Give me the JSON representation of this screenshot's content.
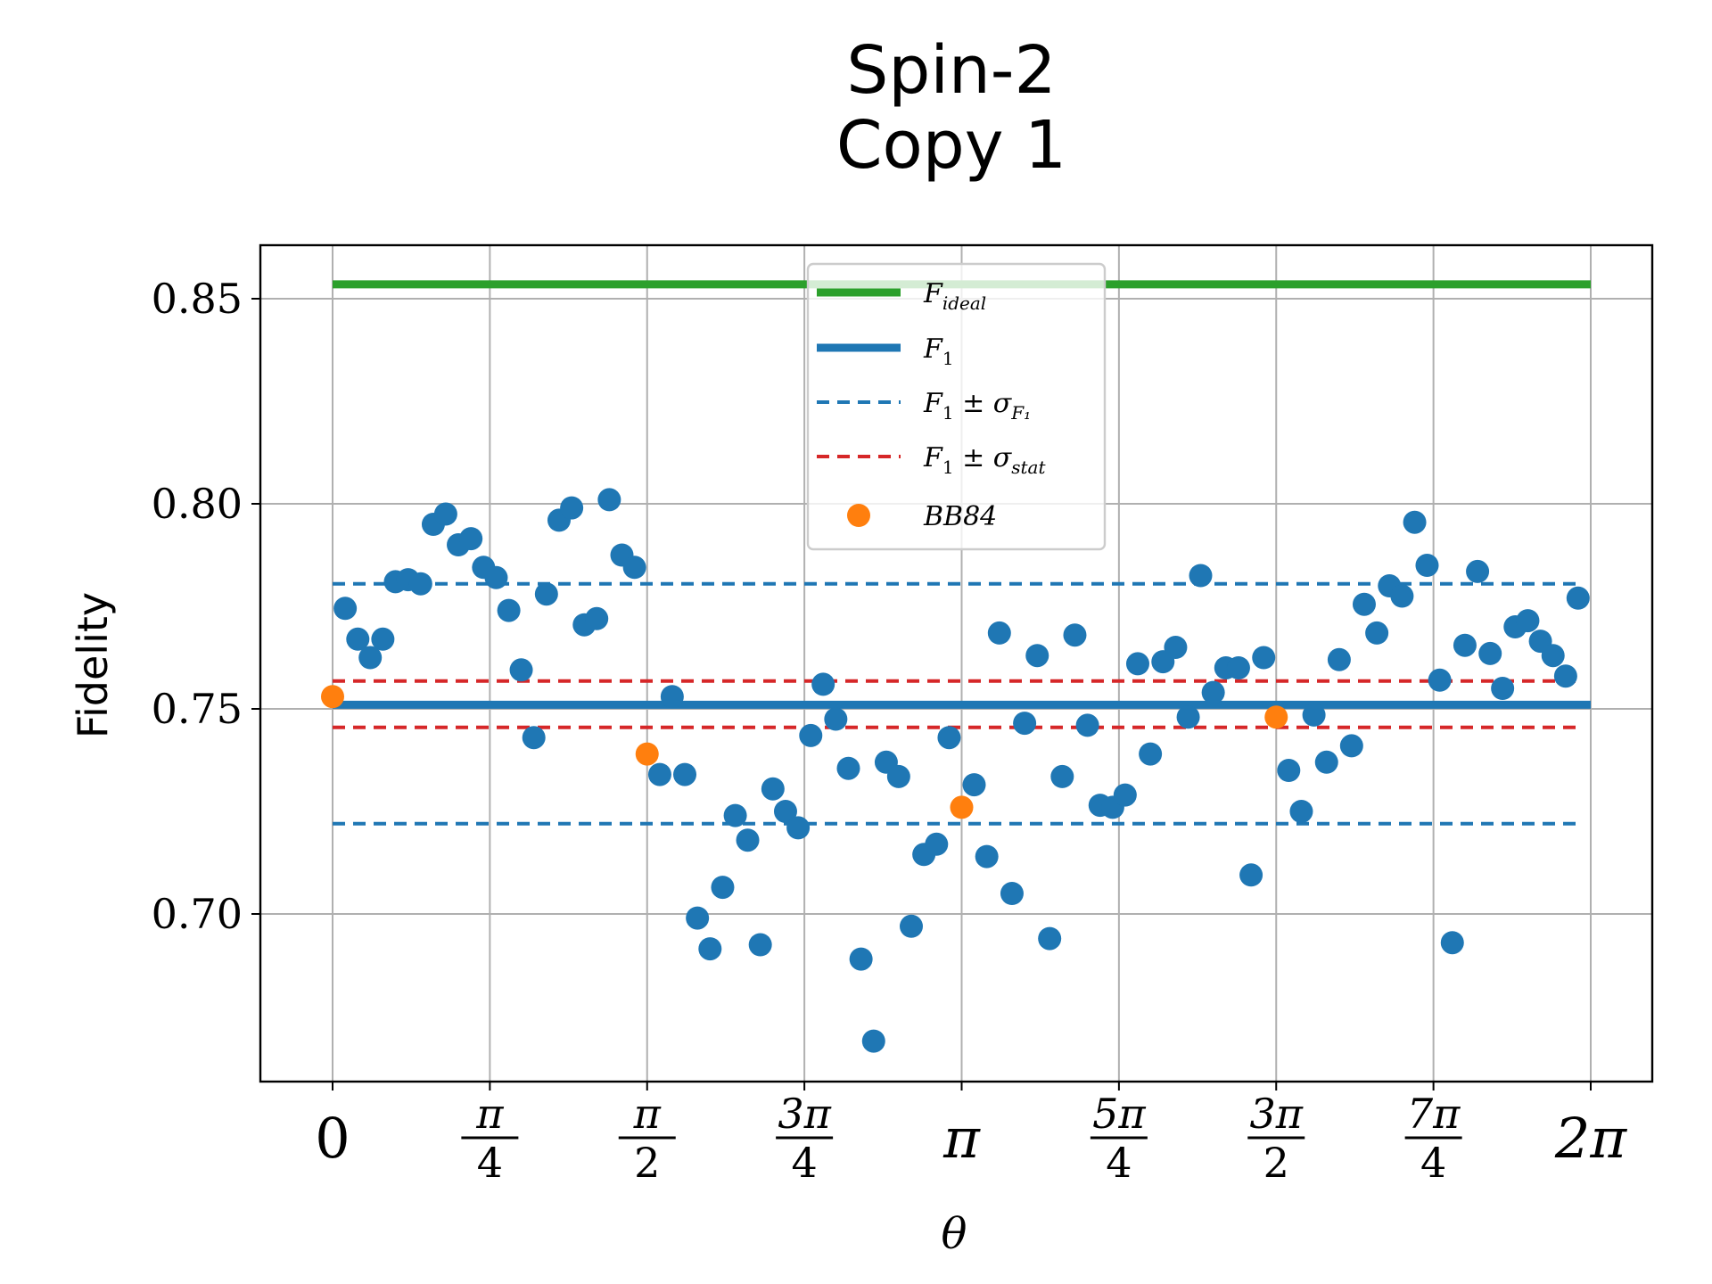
{
  "chart_data": {
    "type": "scatter",
    "title_lines": [
      "Spin-2",
      "Copy 1"
    ],
    "xlabel": "θ",
    "ylabel": "Fidelity",
    "xlim": [
      -0.45,
      8.4
    ],
    "ylim": [
      0.66,
      0.8632
    ],
    "grid": true,
    "legend_position": "upper center",
    "colors": {
      "ideal": "#2ca02c",
      "f1": "#1f77b4",
      "sigma_f1": "#1f77b4",
      "sigma_stat": "#d62728",
      "bb84": "#ff7f0e"
    },
    "y_ticks": [
      {
        "value": 0.7,
        "label": "0.70"
      },
      {
        "value": 0.75,
        "label": "0.75"
      },
      {
        "value": 0.8,
        "label": "0.80"
      },
      {
        "value": 0.85,
        "label": "0.85"
      }
    ],
    "x_ticks": [
      {
        "value": 0,
        "num": "0",
        "den": ""
      },
      {
        "value": 0.7854,
        "num": "π",
        "den": "4"
      },
      {
        "value": 1.5708,
        "num": "π",
        "den": "2"
      },
      {
        "value": 2.3562,
        "num": "3π",
        "den": "4"
      },
      {
        "value": 3.1416,
        "num": "π",
        "den": ""
      },
      {
        "value": 3.927,
        "num": "5π",
        "den": "4"
      },
      {
        "value": 4.7124,
        "num": "3π",
        "den": "2"
      },
      {
        "value": 5.4978,
        "num": "7π",
        "den": "4"
      },
      {
        "value": 6.2832,
        "num": "2π",
        "den": ""
      }
    ],
    "lines": {
      "ideal": {
        "y": 0.8535,
        "x": [
          0,
          6.2832
        ]
      },
      "f1": {
        "y": 0.751,
        "x": [
          0,
          6.2832
        ]
      },
      "f1_plus_sigma_f1": {
        "y": 0.7805,
        "x": [
          0,
          6.22
        ]
      },
      "f1_minus_sigma_f1": {
        "y": 0.722,
        "x": [
          0,
          6.22
        ]
      },
      "f1_plus_sigma_stat": {
        "y": 0.7568,
        "x": [
          0,
          6.22
        ]
      },
      "f1_minus_sigma_stat": {
        "y": 0.7455,
        "x": [
          0,
          6.22
        ]
      }
    },
    "legend": [
      {
        "key": "ideal",
        "style": "solid-thick",
        "color": "#2ca02c",
        "base": "F",
        "sub": "ideal"
      },
      {
        "key": "f1",
        "style": "solid-thick",
        "color": "#1f77b4",
        "base": "F",
        "sub": "1"
      },
      {
        "key": "sigma_f1",
        "style": "dashed",
        "color": "#1f77b4",
        "base": "F",
        "sub": "1",
        "pm": " ± σ",
        "sub2": "F₁"
      },
      {
        "key": "sigma_stat",
        "style": "dashed",
        "color": "#d62728",
        "base": "F",
        "sub": "1",
        "pm": " ± σ",
        "sub2": "stat"
      },
      {
        "key": "bb84",
        "style": "marker",
        "color": "#ff7f0e",
        "base": "BB84",
        "sub": ""
      }
    ],
    "series": [
      {
        "name": "F_1 measurements",
        "color": "#1f77b4",
        "x": [
          0.063,
          0.126,
          0.188,
          0.251,
          0.314,
          0.377,
          0.44,
          0.503,
          0.565,
          0.628,
          0.691,
          0.754,
          0.817,
          0.88,
          0.942,
          1.005,
          1.068,
          1.131,
          1.194,
          1.257,
          1.319,
          1.382,
          1.445,
          1.508,
          1.634,
          1.696,
          1.759,
          1.822,
          1.885,
          1.948,
          2.011,
          2.073,
          2.136,
          2.199,
          2.262,
          2.325,
          2.388,
          2.45,
          2.513,
          2.576,
          2.639,
          2.702,
          2.765,
          2.827,
          2.89,
          2.953,
          3.016,
          3.079,
          3.204,
          3.267,
          3.33,
          3.393,
          3.456,
          3.519,
          3.581,
          3.644,
          3.707,
          3.77,
          3.833,
          3.896,
          3.958,
          4.021,
          4.084,
          4.147,
          4.21,
          4.273,
          4.335,
          4.398,
          4.461,
          4.524,
          4.587,
          4.65,
          4.775,
          4.838,
          4.901,
          4.964,
          5.027,
          5.089,
          5.152,
          5.215,
          5.278,
          5.341,
          5.404,
          5.466,
          5.529,
          5.592,
          5.655,
          5.718,
          5.781,
          5.843,
          5.906,
          5.969,
          6.032,
          6.095,
          6.158,
          6.22
        ],
        "y": [
          0.7745,
          0.767,
          0.7625,
          0.767,
          0.781,
          0.7815,
          0.7805,
          0.795,
          0.7975,
          0.79,
          0.7915,
          0.7845,
          0.782,
          0.774,
          0.7595,
          0.743,
          0.778,
          0.796,
          0.799,
          0.7705,
          0.772,
          0.801,
          0.7875,
          0.7845,
          0.734,
          0.753,
          0.734,
          0.699,
          0.6915,
          0.7065,
          0.724,
          0.718,
          0.6925,
          0.7305,
          0.725,
          0.721,
          0.7435,
          0.756,
          0.7475,
          0.7355,
          0.689,
          0.669,
          0.737,
          0.7335,
          0.697,
          0.7145,
          0.717,
          0.743,
          0.7315,
          0.714,
          0.7685,
          0.705,
          0.7465,
          0.763,
          0.694,
          0.7335,
          0.768,
          0.746,
          0.7265,
          0.726,
          0.729,
          0.761,
          0.739,
          0.7615,
          0.765,
          0.748,
          0.7825,
          0.754,
          0.76,
          0.76,
          0.7095,
          0.7625,
          0.735,
          0.725,
          0.7485,
          0.737,
          0.762,
          0.741,
          0.7755,
          0.7685,
          0.78,
          0.7775,
          0.7955,
          0.785,
          0.757,
          0.693,
          0.7655,
          0.7835,
          0.7635,
          0.755,
          0.77,
          0.7715,
          0.7665,
          0.763,
          0.758,
          0.777
        ]
      },
      {
        "name": "BB84",
        "color": "#ff7f0e",
        "x": [
          0,
          1.5708,
          3.1416,
          4.7124
        ],
        "y": [
          0.753,
          0.739,
          0.726,
          0.748
        ]
      }
    ]
  }
}
